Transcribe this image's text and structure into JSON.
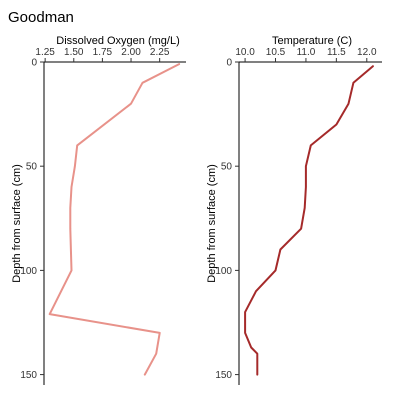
{
  "figure": {
    "title": "Goodman"
  },
  "chart_data": [
    {
      "type": "line",
      "xlabel": "Dissolved Oxygen (mg/L)",
      "ylabel": "Depth from surface (cm)",
      "x_axis_position": "top",
      "y_reversed": true,
      "xlim": [
        1.24,
        2.48
      ],
      "ylim": [
        0,
        155
      ],
      "x_ticks": [
        "1.25",
        "1.50",
        "1.75",
        "2.00",
        "2.25"
      ],
      "y_ticks": [
        "0",
        "50",
        "100",
        "150"
      ],
      "grid": false,
      "color": "#e8928a",
      "series": [
        {
          "x": [
            2.42,
            2.1,
            2.0,
            1.53,
            1.51,
            1.48,
            1.47,
            1.47,
            1.48,
            1.29,
            2.25,
            2.22,
            2.12
          ],
          "y": [
            1,
            10,
            20,
            40,
            50,
            60,
            70,
            80,
            100,
            121,
            130,
            140,
            150
          ]
        }
      ]
    },
    {
      "type": "line",
      "xlabel": "Temperature (C)",
      "ylabel": "Depth from surface (cm)",
      "x_axis_position": "top",
      "y_reversed": true,
      "xlim": [
        9.9,
        12.25
      ],
      "ylim": [
        0,
        155
      ],
      "x_ticks": [
        "10.0",
        "10.5",
        "11.0",
        "11.5",
        "12.0"
      ],
      "y_ticks": [
        "0",
        "50",
        "100",
        "150"
      ],
      "grid": false,
      "color": "#a52a2a",
      "series": [
        {
          "x": [
            12.1,
            11.78,
            11.7,
            11.5,
            11.08,
            11.0,
            11.0,
            10.98,
            10.92,
            10.58,
            10.5,
            10.18,
            10.0,
            10.0,
            10.1,
            10.2,
            10.2
          ],
          "y": [
            2,
            10,
            20,
            30,
            40,
            50,
            60,
            70,
            80,
            90,
            100,
            110,
            120,
            130,
            137,
            140,
            150
          ]
        }
      ]
    }
  ]
}
